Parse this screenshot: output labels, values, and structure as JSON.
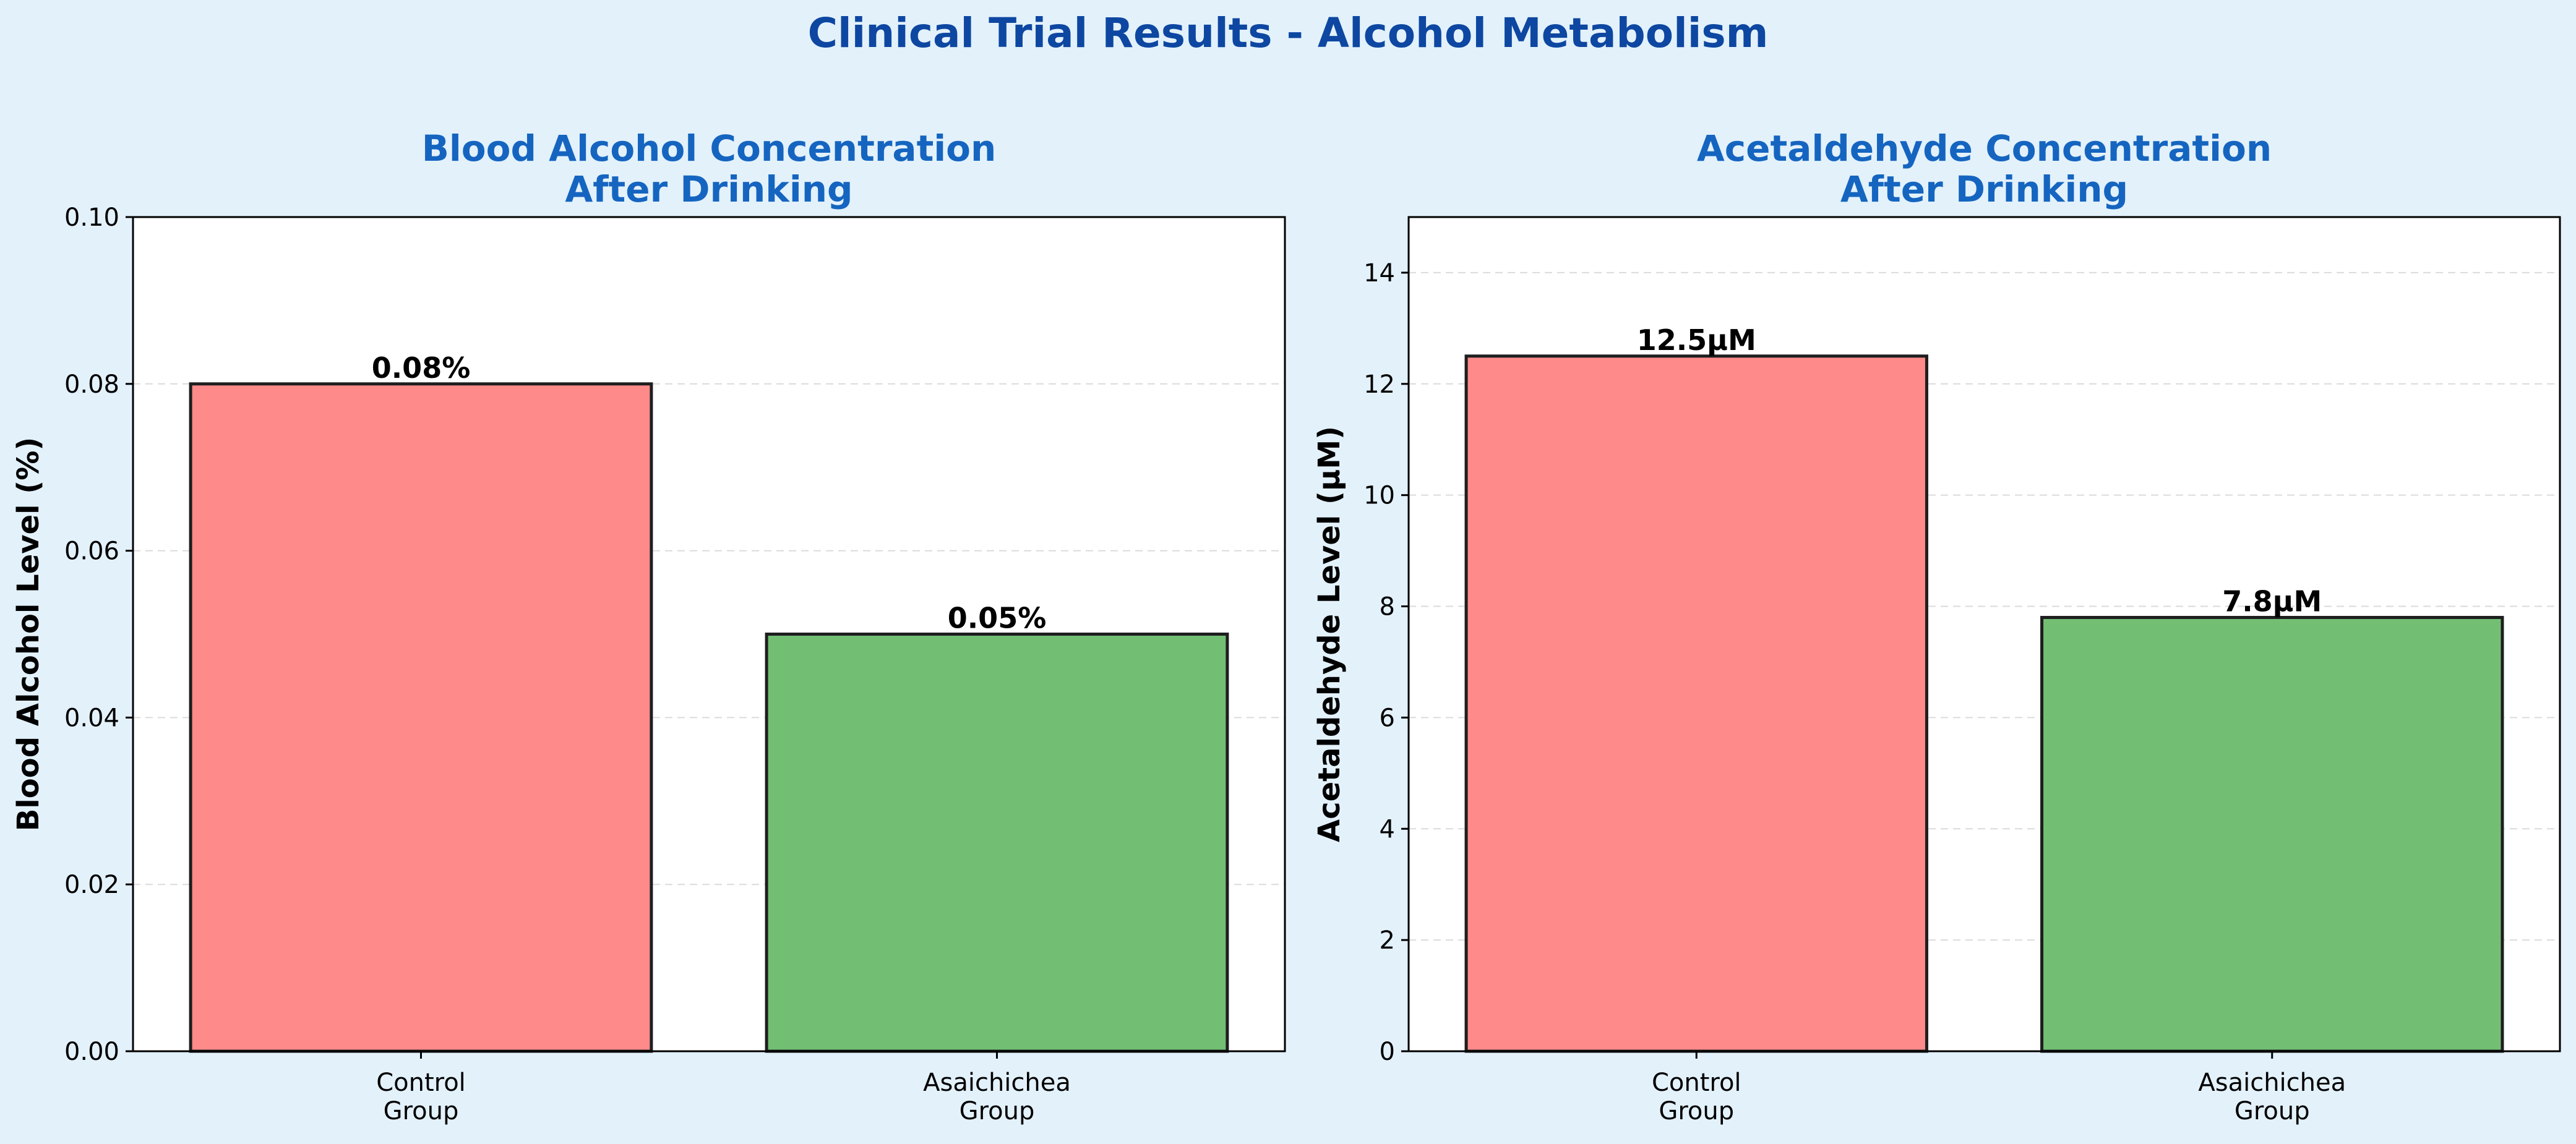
{
  "figure": {
    "title": "Clinical Trial Results - Alcohol Metabolism",
    "title_color": "#0d47a1",
    "subtitle_color": "#1565c0",
    "background": "#e3f1fb"
  },
  "chart_data": [
    {
      "type": "bar",
      "title_lines": [
        "Blood Alcohol Concentration",
        "After Drinking"
      ],
      "categories": [
        [
          "Control",
          "Group"
        ],
        [
          "Asaichichea",
          "Group"
        ]
      ],
      "values": [
        0.08,
        0.05
      ],
      "data_labels": [
        "0.08%",
        "0.05%"
      ],
      "colors": [
        "#ff8a8a",
        "#72bf74"
      ],
      "xlabel": "",
      "ylabel": "Blood Alcohol Level (%)",
      "ylim": [
        0,
        0.1
      ],
      "yticks": [
        0.0,
        0.02,
        0.04,
        0.06,
        0.08,
        0.1
      ],
      "ytick_labels": [
        "0.00",
        "0.02",
        "0.04",
        "0.06",
        "0.08",
        "0.10"
      ],
      "grid": "y-dashed"
    },
    {
      "type": "bar",
      "title_lines": [
        "Acetaldehyde Concentration",
        "After Drinking"
      ],
      "categories": [
        [
          "Control",
          "Group"
        ],
        [
          "Asaichichea",
          "Group"
        ]
      ],
      "values": [
        12.5,
        7.8
      ],
      "data_labels": [
        "12.5μM",
        "7.8μM"
      ],
      "colors": [
        "#ff8a8a",
        "#72bf74"
      ],
      "xlabel": "",
      "ylabel": "Acetaldehyde Level (μM)",
      "ylim": [
        0,
        15
      ],
      "yticks": [
        0,
        2,
        4,
        6,
        8,
        10,
        12,
        14
      ],
      "ytick_labels": [
        "0",
        "2",
        "4",
        "6",
        "8",
        "10",
        "12",
        "14"
      ],
      "grid": "y-dashed"
    }
  ]
}
